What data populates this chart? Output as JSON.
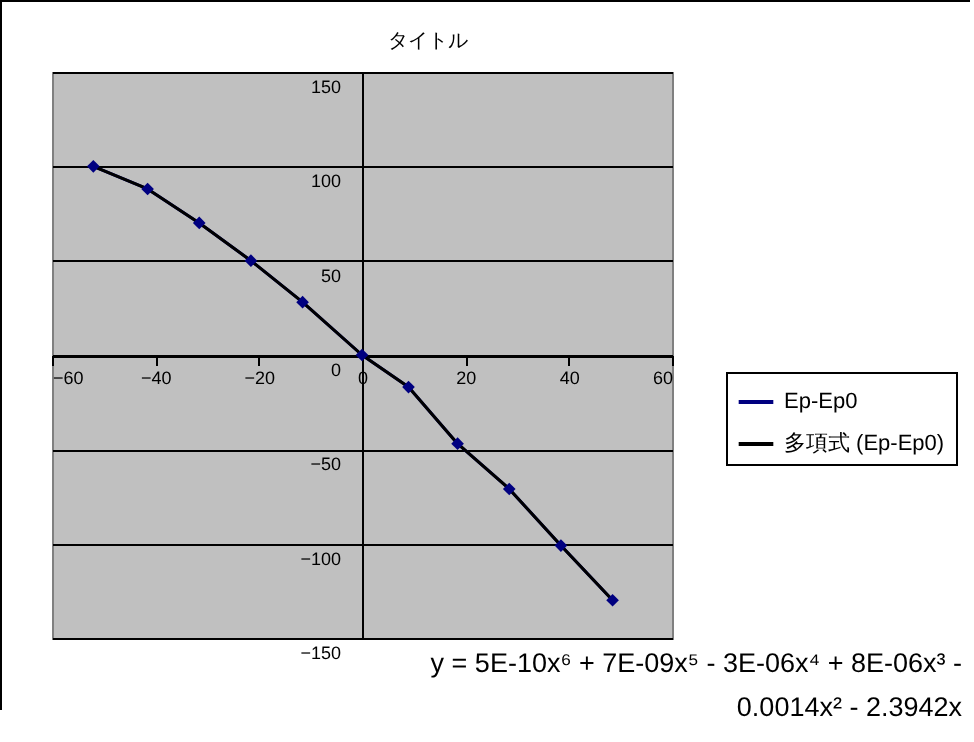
{
  "chart_data": {
    "type": "line",
    "title": "タイトル",
    "x": [
      -52,
      -41.5,
      -31.5,
      -21.5,
      -11.5,
      0,
      9,
      18.5,
      28.5,
      38.5,
      48.5
    ],
    "series": [
      {
        "name": "Ep-Ep0",
        "color": "#000080",
        "marker": "diamond",
        "values": [
          100,
          88,
          70,
          50,
          28,
          0,
          -17,
          -47,
          -71,
          -101,
          -130
        ]
      },
      {
        "name": "多項式 (Ep-Ep0)",
        "color": "#000000",
        "marker": "none",
        "values": [
          100,
          88,
          70,
          50,
          28,
          0,
          -17,
          -47,
          -71,
          -101,
          -130
        ]
      }
    ],
    "xlim": [
      -60,
      60
    ],
    "xticks": [
      -60,
      -40,
      -20,
      0,
      20,
      40,
      60
    ],
    "ylim": [
      -150,
      150
    ],
    "yticks": [
      -150,
      -100,
      -50,
      0,
      50,
      100,
      150
    ],
    "grid": "y",
    "legend": "right",
    "annotations": [
      "y = 5E-10x⁶ + 7E-09x⁵ - 3E-06x⁴ + 8E-06x³ - 0.0014x² - 2.3942x"
    ]
  }
}
